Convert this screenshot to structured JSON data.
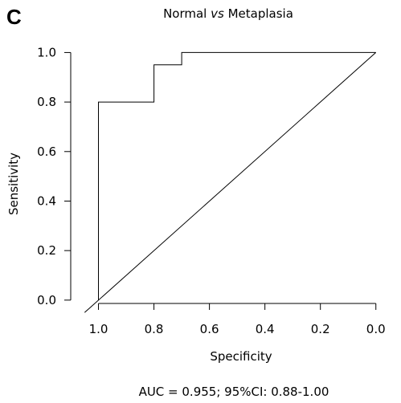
{
  "panel_label": "C",
  "chart_data": {
    "type": "line",
    "title_main": "Normal ",
    "title_italic": "vs",
    "title_rest": " Metaplasia",
    "xlabel": "Specificity",
    "ylabel": "Sensitivity",
    "x_reversed": true,
    "xlim": [
      1.1,
      -0.05
    ],
    "ylim": [
      -0.02,
      1.05
    ],
    "x_ticks": [
      {
        "value": 1.0,
        "label": "1.0"
      },
      {
        "value": 0.8,
        "label": "0.8"
      },
      {
        "value": 0.6,
        "label": "0.6"
      },
      {
        "value": 0.4,
        "label": "0.4"
      },
      {
        "value": 0.2,
        "label": "0.2"
      },
      {
        "value": 0.0,
        "label": "0.0"
      }
    ],
    "y_ticks": [
      {
        "value": 0.0,
        "label": "0.0"
      },
      {
        "value": 0.2,
        "label": "0.2"
      },
      {
        "value": 0.4,
        "label": "0.4"
      },
      {
        "value": 0.6,
        "label": "0.6"
      },
      {
        "value": 0.8,
        "label": "0.8"
      },
      {
        "value": 1.0,
        "label": "1.0"
      }
    ],
    "series": [
      {
        "role": "roc",
        "x": [
          1.0,
          1.0,
          0.8,
          0.8,
          0.7,
          0.7,
          0.0
        ],
        "y": [
          0.0,
          0.8,
          0.8,
          0.95,
          0.95,
          1.0,
          1.0
        ]
      },
      {
        "role": "reference",
        "x": [
          1.05,
          0.0
        ],
        "y": [
          -0.05,
          1.0
        ]
      }
    ],
    "annotation": "AUC = 0.955; 95%CI: 0.88-1.00",
    "grid": false,
    "line_color": "#000000"
  }
}
